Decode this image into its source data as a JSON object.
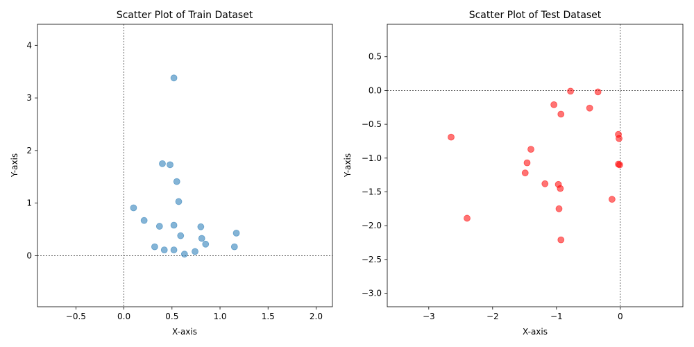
{
  "chart_data": [
    {
      "type": "scatter",
      "title": "Scatter Plot of Train Dataset",
      "xlabel": "X-axis",
      "ylabel": "Y-axis",
      "xlim": [
        -0.9,
        2.17
      ],
      "ylim": [
        -0.97,
        4.4
      ],
      "xticks": [
        -0.5,
        0.0,
        0.5,
        1.0,
        1.5,
        2.0
      ],
      "xtick_labels": [
        "−0.5",
        "0.0",
        "0.5",
        "1.0",
        "1.5",
        "2.0"
      ],
      "yticks": [
        0,
        1,
        2,
        3,
        4
      ],
      "ytick_labels": [
        "0",
        "1",
        "2",
        "3",
        "4"
      ],
      "reference_lines": {
        "x": 0,
        "y": 0
      },
      "grid": false,
      "color": "#1f77b4",
      "alpha": 0.55,
      "points": [
        {
          "x": 0.52,
          "y": 3.38
        },
        {
          "x": 0.4,
          "y": 1.75
        },
        {
          "x": 0.48,
          "y": 1.73
        },
        {
          "x": 0.55,
          "y": 1.41
        },
        {
          "x": 0.57,
          "y": 1.03
        },
        {
          "x": 0.1,
          "y": 0.91
        },
        {
          "x": 0.21,
          "y": 0.67
        },
        {
          "x": 0.37,
          "y": 0.56
        },
        {
          "x": 0.52,
          "y": 0.58
        },
        {
          "x": 0.8,
          "y": 0.55
        },
        {
          "x": 1.17,
          "y": 0.43
        },
        {
          "x": 0.59,
          "y": 0.38
        },
        {
          "x": 0.81,
          "y": 0.33
        },
        {
          "x": 0.85,
          "y": 0.22
        },
        {
          "x": 0.32,
          "y": 0.17
        },
        {
          "x": 1.15,
          "y": 0.17
        },
        {
          "x": 0.42,
          "y": 0.11
        },
        {
          "x": 0.52,
          "y": 0.11
        },
        {
          "x": 0.74,
          "y": 0.08
        },
        {
          "x": 0.63,
          "y": 0.03
        }
      ]
    },
    {
      "type": "scatter",
      "title": "Scatter Plot of Test Dataset",
      "xlabel": "X-axis",
      "ylabel": "Y-axis",
      "xlim": [
        -3.65,
        0.98
      ],
      "ylim": [
        -3.2,
        0.98
      ],
      "xticks": [
        -3,
        -2,
        -1,
        0
      ],
      "xtick_labels": [
        "−3",
        "−2",
        "−1",
        "0"
      ],
      "yticks": [
        0.5,
        0.0,
        -0.5,
        -1.0,
        -1.5,
        -2.0,
        -2.5,
        -3.0
      ],
      "ytick_labels": [
        "0.5",
        "0.0",
        "−0.5",
        "−1.0",
        "−1.5",
        "−2.0",
        "−2.5",
        "−3.0"
      ],
      "reference_lines": {
        "x": 0,
        "y": 0
      },
      "grid": false,
      "color": "#ff0000",
      "alpha": 0.55,
      "points": [
        {
          "x": -0.78,
          "y": -0.01
        },
        {
          "x": -0.35,
          "y": -0.02
        },
        {
          "x": -1.04,
          "y": -0.21
        },
        {
          "x": -0.48,
          "y": -0.26
        },
        {
          "x": -0.93,
          "y": -0.35
        },
        {
          "x": -2.65,
          "y": -0.69
        },
        {
          "x": -0.03,
          "y": -0.65
        },
        {
          "x": -0.02,
          "y": -0.71
        },
        {
          "x": -1.4,
          "y": -0.87
        },
        {
          "x": -1.46,
          "y": -1.07
        },
        {
          "x": -0.03,
          "y": -1.09
        },
        {
          "x": -0.01,
          "y": -1.1
        },
        {
          "x": -1.49,
          "y": -1.22
        },
        {
          "x": -1.18,
          "y": -1.38
        },
        {
          "x": -0.97,
          "y": -1.39
        },
        {
          "x": -0.94,
          "y": -1.45
        },
        {
          "x": -0.13,
          "y": -1.61
        },
        {
          "x": -0.96,
          "y": -1.75
        },
        {
          "x": -2.4,
          "y": -1.89
        },
        {
          "x": -0.93,
          "y": -2.21
        }
      ]
    }
  ]
}
